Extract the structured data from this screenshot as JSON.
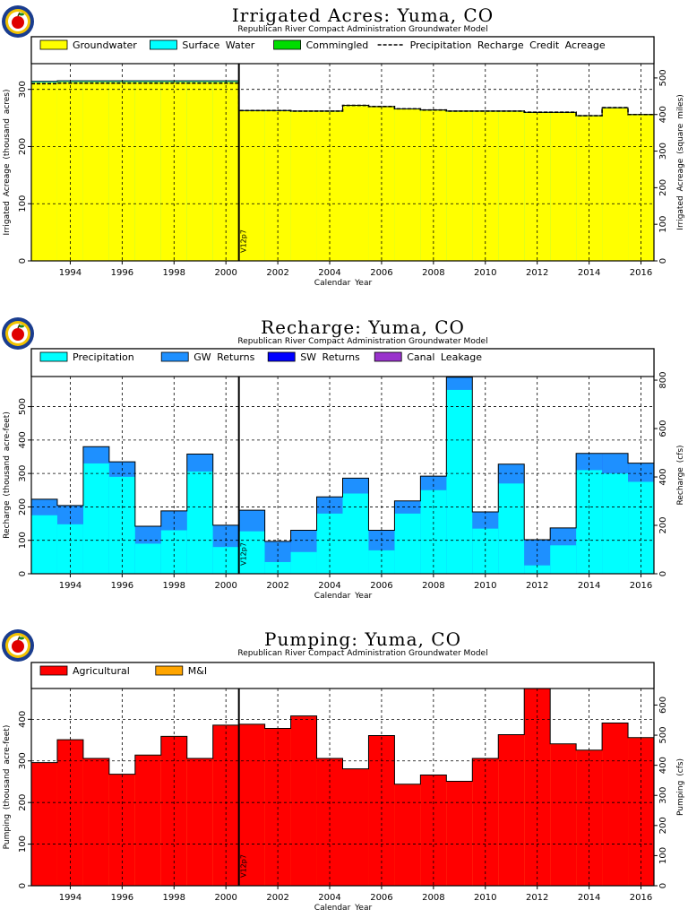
{
  "chart_data": [
    {
      "type": "area",
      "title": "Irrigated Acres: Yuma, CO",
      "subtitle": "Republican River Compact Administration Groundwater Model",
      "xlabel": "Calendar Year",
      "ylabel": "Irrigated Acreage (thousand acres)",
      "ylabel_right": "Irrigated Acreage (square miles)",
      "x_ticks": [
        1994,
        1996,
        1998,
        2000,
        2002,
        2004,
        2006,
        2008,
        2010,
        2012,
        2014,
        2016
      ],
      "ylim": [
        0,
        345
      ],
      "y_ticks": [
        0,
        100,
        200,
        300
      ],
      "ylim_right": [
        0,
        539
      ],
      "y_ticks_right": [
        0,
        100,
        200,
        300,
        400,
        500
      ],
      "marker_label": "V12p7",
      "marker_year": 2000.5,
      "years": [
        1993,
        1994,
        1995,
        1996,
        1997,
        1998,
        1999,
        2000,
        2001,
        2002,
        2003,
        2004,
        2005,
        2006,
        2007,
        2008,
        2009,
        2010,
        2011,
        2012,
        2013,
        2014,
        2015,
        2016
      ],
      "series": [
        {
          "name": "Groundwater",
          "color": "#ffff00",
          "values": [
            312,
            313,
            313,
            313,
            313,
            313,
            313,
            313,
            262,
            262,
            261,
            261,
            271,
            269,
            265,
            263,
            261,
            261,
            261,
            259,
            259,
            253,
            267,
            255
          ]
        },
        {
          "name": "Surface Water",
          "color": "#00ffff",
          "values": [
            2,
            2,
            2,
            2,
            2,
            2,
            2,
            2,
            1,
            1,
            1,
            1,
            1,
            1,
            1,
            1,
            1,
            1,
            1,
            1,
            1,
            1,
            1,
            1
          ]
        },
        {
          "name": "Commingled",
          "color": "#00dd00",
          "values": [
            0,
            0,
            0,
            0,
            0,
            0,
            0,
            0,
            0,
            0,
            0,
            0,
            0,
            0,
            0,
            0,
            0,
            0,
            0,
            0,
            0,
            0,
            0,
            0
          ]
        },
        {
          "name": "Precipitation Recharge Credit Acreage",
          "color": "#000000",
          "style": "dashed",
          "values": [
            310,
            311,
            311,
            311,
            311,
            311,
            311,
            311,
            263,
            263,
            262,
            262,
            272,
            270,
            266,
            264,
            262,
            262,
            262,
            260,
            260,
            254,
            268,
            256
          ]
        }
      ]
    },
    {
      "type": "area",
      "title": "Recharge: Yuma, CO",
      "subtitle": "Republican River Compact Administration Groundwater Model",
      "xlabel": "Calendar Year",
      "ylabel": "Recharge (thousand acre-feet)",
      "ylabel_right": "Recharge (cfs)",
      "x_ticks": [
        1994,
        1996,
        1998,
        2000,
        2002,
        2004,
        2006,
        2008,
        2010,
        2012,
        2014,
        2016
      ],
      "ylim": [
        0,
        590
      ],
      "y_ticks": [
        0,
        100,
        200,
        300,
        400,
        500
      ],
      "ylim_right": [
        0,
        815
      ],
      "y_ticks_right": [
        0,
        200,
        400,
        600,
        800
      ],
      "marker_label": "V12p7",
      "marker_year": 2000.5,
      "years": [
        1993,
        1994,
        1995,
        1996,
        1997,
        1998,
        1999,
        2000,
        2001,
        2002,
        2003,
        2004,
        2005,
        2006,
        2007,
        2008,
        2009,
        2010,
        2011,
        2012,
        2013,
        2014,
        2015,
        2016
      ],
      "series": [
        {
          "name": "Precipitation",
          "color": "#00ffff",
          "values": [
            175,
            148,
            330,
            290,
            90,
            130,
            306,
            80,
            127,
            35,
            65,
            180,
            240,
            70,
            180,
            250,
            550,
            135,
            270,
            25,
            85,
            310,
            300,
            275
          ]
        },
        {
          "name": "GW Returns",
          "color": "#1e90ff",
          "values": [
            48,
            56,
            50,
            45,
            52,
            58,
            52,
            65,
            63,
            62,
            65,
            50,
            46,
            60,
            38,
            42,
            38,
            50,
            58,
            77,
            52,
            50,
            60,
            56
          ]
        },
        {
          "name": "SW Returns",
          "color": "#0000ff",
          "values": [
            0,
            0,
            0,
            0,
            0,
            0,
            0,
            0,
            0,
            0,
            0,
            0,
            0,
            0,
            0,
            0,
            0,
            0,
            0,
            0,
            0,
            0,
            0,
            0
          ]
        },
        {
          "name": "Canal Leakage",
          "color": "#9932cc",
          "values": [
            0,
            0,
            0,
            0,
            0,
            0,
            0,
            0,
            0,
            0,
            0,
            0,
            0,
            0,
            0,
            0,
            0,
            0,
            0,
            0,
            0,
            0,
            0,
            0
          ]
        }
      ]
    },
    {
      "type": "area",
      "title": "Pumping: Yuma, CO",
      "subtitle": "Republican River Compact Administration Groundwater Model",
      "xlabel": "Calendar Year",
      "ylabel": "Pumping (thousand acre-feet)",
      "ylabel_right": "Pumping (cfs)",
      "x_ticks": [
        1994,
        1996,
        1998,
        2000,
        2002,
        2004,
        2006,
        2008,
        2010,
        2012,
        2014,
        2016
      ],
      "ylim": [
        0,
        474
      ],
      "y_ticks": [
        0,
        100,
        200,
        300,
        400
      ],
      "ylim_right": [
        0,
        655
      ],
      "y_ticks_right": [
        0,
        100,
        200,
        300,
        400,
        500,
        600
      ],
      "marker_label": "V12p7",
      "marker_year": 2000.5,
      "years": [
        1993,
        1994,
        1995,
        1996,
        1997,
        1998,
        1999,
        2000,
        2001,
        2002,
        2003,
        2004,
        2005,
        2006,
        2007,
        2008,
        2009,
        2010,
        2011,
        2012,
        2013,
        2014,
        2015,
        2016
      ],
      "series": [
        {
          "name": "Agricultural",
          "color": "#ff0000",
          "values": [
            295,
            350,
            305,
            267,
            313,
            358,
            305,
            385,
            387,
            377,
            407,
            305,
            280,
            360,
            243,
            265,
            250,
            305,
            362,
            473,
            340,
            325,
            390,
            355
          ]
        },
        {
          "name": "M&I",
          "color": "#ffa500",
          "values": [
            1,
            1,
            1,
            1,
            1,
            1,
            1,
            1,
            1,
            1,
            1,
            1,
            1,
            1,
            1,
            1,
            1,
            1,
            1,
            1,
            1,
            1,
            1,
            1
          ]
        }
      ]
    }
  ]
}
